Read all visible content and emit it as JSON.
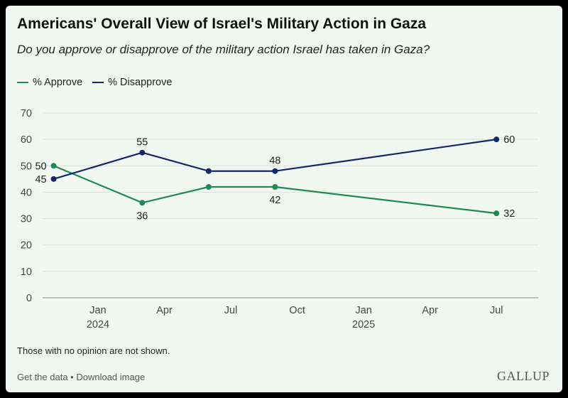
{
  "header": {
    "title": "Americans' Overall View of Israel's Military Action in Gaza",
    "subtitle": "Do you approve or disapprove of the military action Israel has taken in Gaza?"
  },
  "legend": {
    "approve_label": "% Approve",
    "disapprove_label": "% Disapprove"
  },
  "colors": {
    "approve": "#1e8a52",
    "disapprove": "#13286b",
    "grid": "#d9e0d9",
    "axis": "#888888"
  },
  "chart_data": {
    "type": "line",
    "title": "Americans' Overall View of Israel's Military Action in Gaza",
    "subtitle": "Do you approve or disapprove of the military action Israel has taken in Gaza?",
    "xlabel": "",
    "ylabel": "",
    "ylim": [
      0,
      70
    ],
    "yticks": [
      0,
      10,
      20,
      30,
      40,
      50,
      60,
      70
    ],
    "xlim": [
      -2.5,
      19.5
    ],
    "xticks": [
      {
        "pos": 0,
        "label": "Jan",
        "year": "2024"
      },
      {
        "pos": 3,
        "label": "Apr",
        "year": ""
      },
      {
        "pos": 6,
        "label": "Jul",
        "year": ""
      },
      {
        "pos": 9,
        "label": "Oct",
        "year": ""
      },
      {
        "pos": 12,
        "label": "Jan",
        "year": "2025"
      },
      {
        "pos": 15,
        "label": "Apr",
        "year": ""
      },
      {
        "pos": 18,
        "label": "Jul",
        "year": ""
      }
    ],
    "grid": true,
    "legend_position": "top-left",
    "series": [
      {
        "name": "% Approve",
        "key": "approve",
        "x": [
          -2,
          2,
          5,
          8,
          18
        ],
        "values": [
          50,
          36,
          42,
          42,
          32
        ],
        "label_positions": [
          "left",
          "below",
          "none",
          "below",
          "right"
        ]
      },
      {
        "name": "% Disapprove",
        "key": "disapprove",
        "x": [
          -2,
          2,
          5,
          8,
          18
        ],
        "values": [
          45,
          55,
          48,
          48,
          60
        ],
        "label_positions": [
          "left",
          "above",
          "none",
          "above",
          "right"
        ]
      }
    ]
  },
  "footer": {
    "note": "Those with no opinion are not shown.",
    "get_data": "Get the data",
    "separator": " • ",
    "download": "Download image",
    "brand": "GALLUP"
  }
}
